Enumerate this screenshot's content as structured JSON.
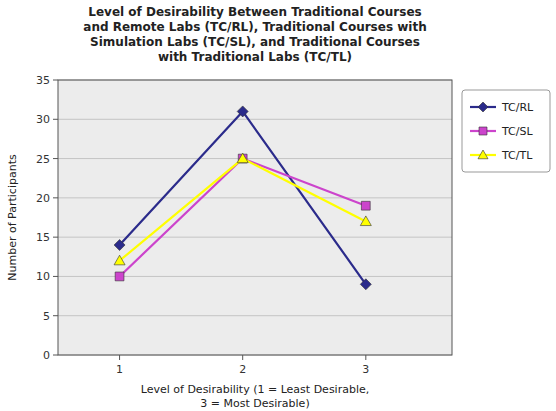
{
  "chart_data": {
    "type": "line",
    "title": "Level of Desirability Between Traditional Courses\nand Remote Labs (TC/RL), Traditional Courses with\nSimulation Labs (TC/SL), and Traditional Courses\nwith Traditional Labs (TC/TL)",
    "xlabel": "Level of Desirability (1 = Least Desirable,\n3 = Most Desirable)",
    "ylabel": "Number of Participants",
    "x": [
      1,
      2,
      3
    ],
    "series": [
      {
        "name": "TC/RL",
        "color": "#2B2B8B",
        "marker": "diamond",
        "values": [
          14,
          31,
          9
        ]
      },
      {
        "name": "TC/SL",
        "color": "#CC44CC",
        "marker": "square",
        "values": [
          10,
          25,
          19
        ]
      },
      {
        "name": "TC/TL",
        "color": "#FFFF00",
        "marker": "triangle",
        "values": [
          12,
          25,
          17
        ]
      }
    ],
    "xlim": [
      0.5,
      3.7
    ],
    "xticks": [
      1,
      2,
      3
    ],
    "ylim": [
      0,
      35
    ],
    "yticks": [
      0,
      5,
      10,
      15,
      20,
      25,
      30,
      35
    ],
    "grid": true,
    "legend": "right"
  }
}
